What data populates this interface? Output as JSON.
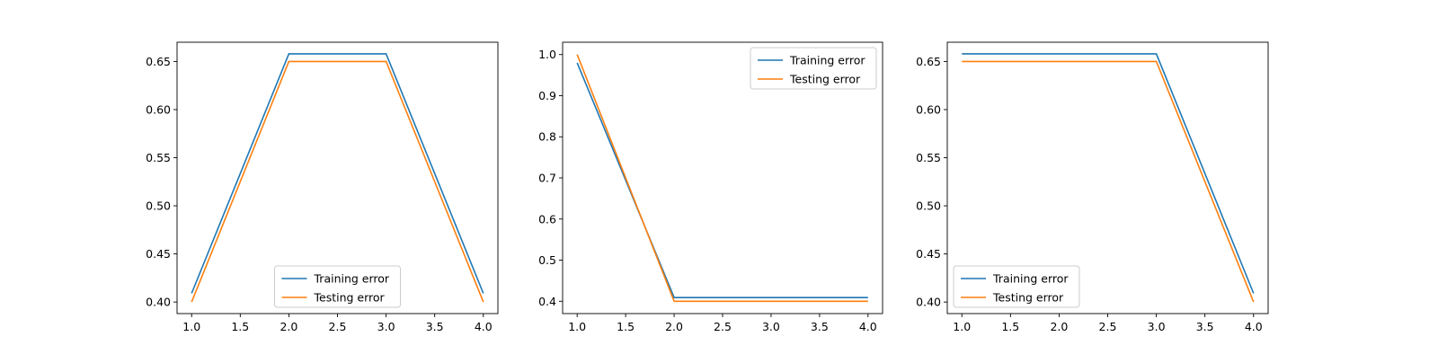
{
  "chart_data": [
    {
      "type": "line",
      "x": [
        1.0,
        2.0,
        3.0,
        4.0
      ],
      "xlim": [
        0.85,
        4.15
      ],
      "ylim": [
        0.388,
        0.67
      ],
      "xticks": [
        "1.0",
        "1.5",
        "2.0",
        "2.5",
        "3.0",
        "3.5",
        "4.0"
      ],
      "yticks": [
        "0.40",
        "0.45",
        "0.50",
        "0.55",
        "0.60",
        "0.65"
      ],
      "legend_position": "lower-center",
      "series": [
        {
          "name": "Training error",
          "color": "#1f77b4",
          "values": [
            0.409,
            0.658,
            0.658,
            0.409
          ]
        },
        {
          "name": "Testing error",
          "color": "#ff7f0e",
          "values": [
            0.4,
            0.65,
            0.65,
            0.4
          ]
        }
      ]
    },
    {
      "type": "line",
      "x": [
        1.0,
        2.0,
        3.0,
        4.0
      ],
      "xlim": [
        0.85,
        4.15
      ],
      "ylim": [
        0.37,
        1.03
      ],
      "xticks": [
        "1.0",
        "1.5",
        "2.0",
        "2.5",
        "3.0",
        "3.5",
        "4.0"
      ],
      "yticks": [
        "0.4",
        "0.5",
        "0.6",
        "0.7",
        "0.8",
        "0.9",
        "1.0"
      ],
      "legend_position": "upper-right",
      "series": [
        {
          "name": "Training error",
          "color": "#1f77b4",
          "values": [
            0.98,
            0.409,
            0.409,
            0.409
          ]
        },
        {
          "name": "Testing error",
          "color": "#ff7f0e",
          "values": [
            1.0,
            0.4,
            0.4,
            0.4
          ]
        }
      ]
    },
    {
      "type": "line",
      "x": [
        1.0,
        2.0,
        3.0,
        4.0
      ],
      "xlim": [
        0.85,
        4.15
      ],
      "ylim": [
        0.388,
        0.67
      ],
      "xticks": [
        "1.0",
        "1.5",
        "2.0",
        "2.5",
        "3.0",
        "3.5",
        "4.0"
      ],
      "yticks": [
        "0.40",
        "0.45",
        "0.50",
        "0.55",
        "0.60",
        "0.65"
      ],
      "legend_position": "lower-left",
      "series": [
        {
          "name": "Training error",
          "color": "#1f77b4",
          "values": [
            0.658,
            0.658,
            0.658,
            0.409
          ]
        },
        {
          "name": "Testing error",
          "color": "#ff7f0e",
          "values": [
            0.65,
            0.65,
            0.65,
            0.4
          ]
        }
      ]
    }
  ]
}
